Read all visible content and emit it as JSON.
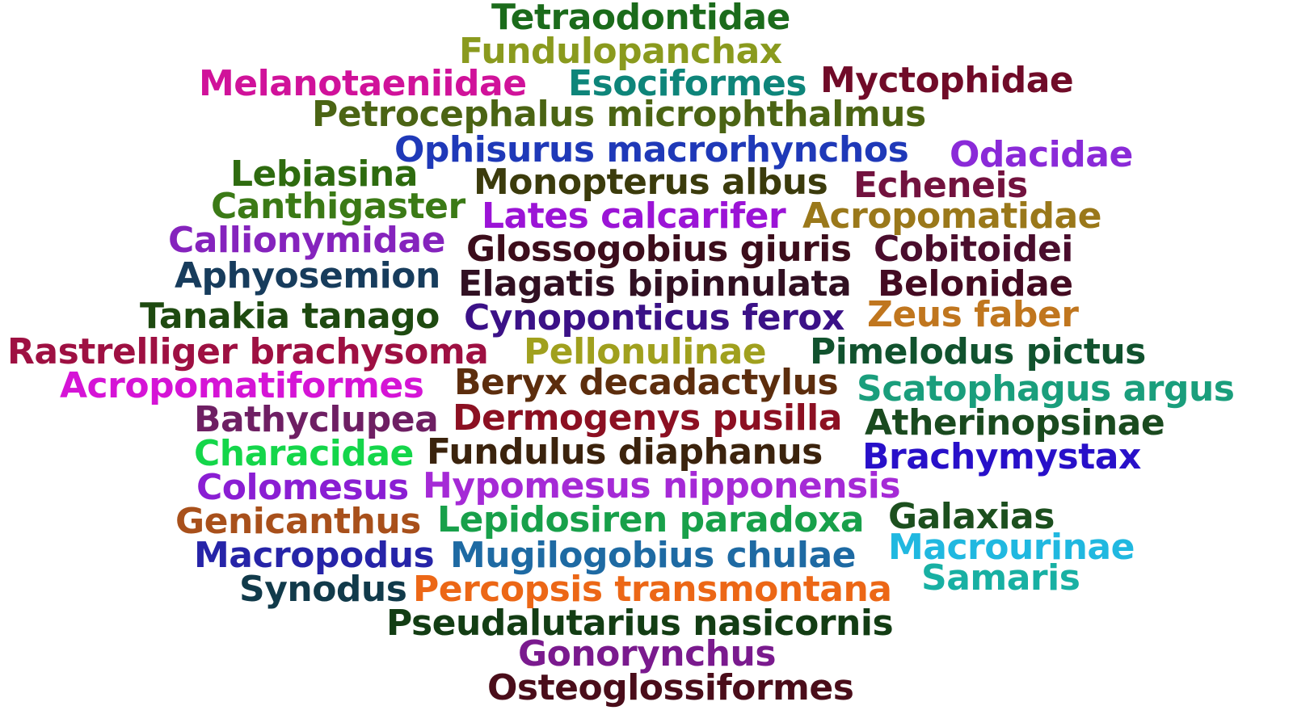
{
  "word_cloud": {
    "words": [
      {
        "text": "Tetraodontidae",
        "color": "#1b6b1b"
      },
      {
        "text": "Fundulopanchax",
        "color": "#8a9a1e"
      },
      {
        "text": "Melanotaeniidae",
        "color": "#d0129a"
      },
      {
        "text": "Esociformes",
        "color": "#0e857a"
      },
      {
        "text": "Myctophidae",
        "color": "#700b28"
      },
      {
        "text": "Petrocephalus microphthalmus",
        "color": "#4b6414"
      },
      {
        "text": "Ophisurus macrorhynchos",
        "color": "#1f39b8"
      },
      {
        "text": "Odacidae",
        "color": "#8a2ad8"
      },
      {
        "text": "Lebiasina",
        "color": "#2e6b0f"
      },
      {
        "text": "Monopterus albus",
        "color": "#3b3b0c"
      },
      {
        "text": "Echeneis",
        "color": "#72123e"
      },
      {
        "text": "Canthigaster",
        "color": "#3b7a16"
      },
      {
        "text": "Lates calcarifer",
        "color": "#9b14d6"
      },
      {
        "text": "Acropomatidae",
        "color": "#9a781a"
      },
      {
        "text": "Callionymidae",
        "color": "#8523bd"
      },
      {
        "text": "Glossogobius giuris",
        "color": "#3c0d1b"
      },
      {
        "text": "Cobitoidei",
        "color": "#4a0d2d"
      },
      {
        "text": "Aphyosemion",
        "color": "#173c5c"
      },
      {
        "text": "Elagatis bipinnulata",
        "color": "#311022"
      },
      {
        "text": "Belonidae",
        "color": "#440b22"
      },
      {
        "text": "Tanakia tanago",
        "color": "#1e4a10"
      },
      {
        "text": "Cynoponticus ferox",
        "color": "#3b1187"
      },
      {
        "text": "Zeus faber",
        "color": "#c0761e"
      },
      {
        "text": "Rastrelliger brachysoma",
        "color": "#9e1042"
      },
      {
        "text": "Pellonulinae",
        "color": "#a0a01e"
      },
      {
        "text": "Pimelodus pictus",
        "color": "#11522e"
      },
      {
        "text": "Acropomatiformes",
        "color": "#d514d6"
      },
      {
        "text": "Beryx decadactylus",
        "color": "#5c2d0d"
      },
      {
        "text": "Scatophagus argus",
        "color": "#1a9e7c"
      },
      {
        "text": "Bathyclupea",
        "color": "#6e1f63"
      },
      {
        "text": "Dermogenys pusilla",
        "color": "#8c1022"
      },
      {
        "text": "Atherinopsinae",
        "color": "#1a4a1f"
      },
      {
        "text": "Characidae",
        "color": "#14d64a"
      },
      {
        "text": "Fundulus diaphanus",
        "color": "#3b230d"
      },
      {
        "text": "Brachymystax",
        "color": "#2810c9"
      },
      {
        "text": "Colomesus",
        "color": "#8a1ed3"
      },
      {
        "text": "Hypomesus nipponensis",
        "color": "#a52ad6"
      },
      {
        "text": "Genicanthus",
        "color": "#a8501b"
      },
      {
        "text": "Lepidosiren paradoxa",
        "color": "#18a04a"
      },
      {
        "text": "Galaxias",
        "color": "#1c4f1e"
      },
      {
        "text": "Macrourinae",
        "color": "#20b8e0"
      },
      {
        "text": "Macropodus",
        "color": "#2624a8"
      },
      {
        "text": "Mugilogobius chulae",
        "color": "#1e6aa3"
      },
      {
        "text": "Samaris",
        "color": "#18b0a3"
      },
      {
        "text": "Synodus",
        "color": "#113a4a"
      },
      {
        "text": "Percopsis transmontana",
        "color": "#ec6716"
      },
      {
        "text": "Pseudalutarius nasicornis",
        "color": "#133d14"
      },
      {
        "text": "Gonorynchus",
        "color": "#7a1a8e"
      },
      {
        "text": "Osteoglossiformes",
        "color": "#4a0d1a"
      }
    ]
  }
}
